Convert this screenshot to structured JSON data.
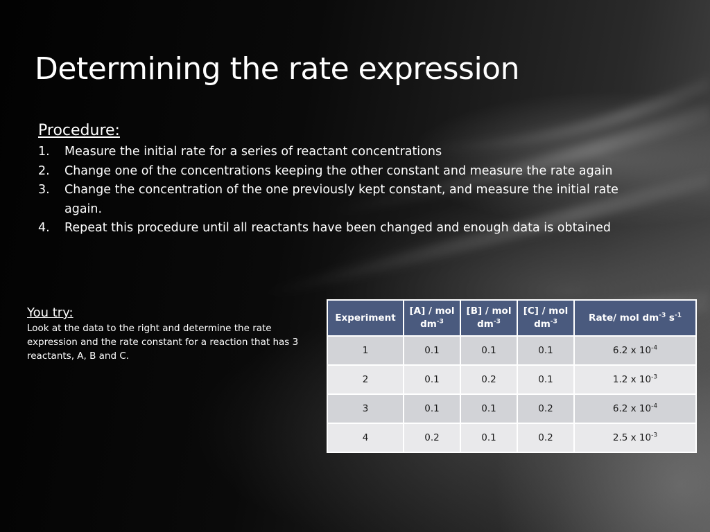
{
  "slide": {
    "title": "Determining the rate expression",
    "procedure": {
      "heading": "Procedure:",
      "steps": [
        {
          "num": "1.",
          "text": "Measure the initial rate for a series of reactant concentrations"
        },
        {
          "num": "2.",
          "text": "Change one of the concentrations keeping the other constant and measure the rate again"
        },
        {
          "num": "3.",
          "text": "Change the concentration of the one previously kept constant, and measure the initial rate again."
        },
        {
          "num": "4.",
          "text": "Repeat this procedure until all reactants have been changed and enough data is obtained"
        }
      ]
    },
    "you_try": {
      "heading": "You try:",
      "text": "Look at the data to the right and determine the rate expression and the rate constant for a reaction that has 3 reactants, A, B and C."
    },
    "table": {
      "headers": {
        "experiment": "Experiment",
        "a": {
          "label": "[A] / mol dm",
          "exp": "-3"
        },
        "b": {
          "label": "[B] / mol dm",
          "exp": "-3"
        },
        "c": {
          "label": "[C] / mol dm",
          "exp": "-3"
        },
        "rate": {
          "label": "Rate/ mol dm",
          "exp1": "-3",
          "mid": " s",
          "exp2": "-1"
        }
      },
      "rows": [
        {
          "experiment": "1",
          "a": "0.1",
          "b": "0.1",
          "c": "0.1",
          "rate_mantissa": "6.2 x 10",
          "rate_exp": "-4"
        },
        {
          "experiment": "2",
          "a": "0.1",
          "b": "0.2",
          "c": "0.1",
          "rate_mantissa": "1.2 x 10",
          "rate_exp": "-3"
        },
        {
          "experiment": "3",
          "a": "0.1",
          "b": "0.1",
          "c": "0.2",
          "rate_mantissa": "6.2 x 10",
          "rate_exp": "-4"
        },
        {
          "experiment": "4",
          "a": "0.2",
          "b": "0.1",
          "c": "0.2",
          "rate_mantissa": "2.5 x 10",
          "rate_exp": "-3"
        }
      ]
    }
  },
  "colors": {
    "background": "#000000",
    "header_fill": "#4a5a7e",
    "row_odd": "#d2d3d7",
    "row_even": "#e9e9eb"
  }
}
